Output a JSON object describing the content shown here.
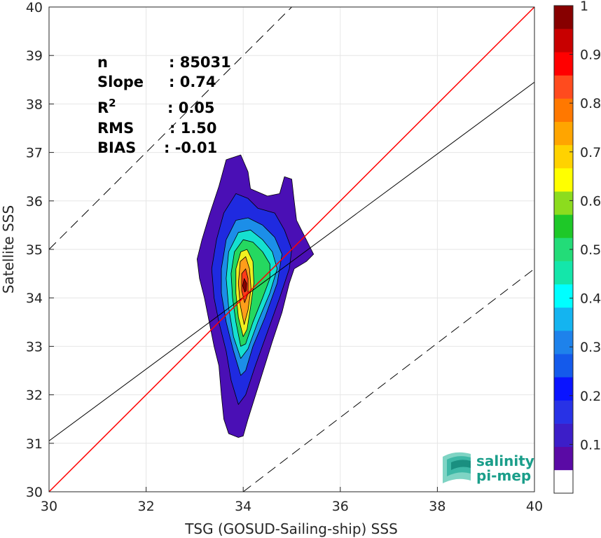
{
  "chart_data": {
    "type": "heatmap",
    "title": "",
    "xlabel": "TSG (GOSUD-Sailing-ship) SSS",
    "ylabel": "Satellite SSS",
    "xlim": [
      30,
      40
    ],
    "ylim": [
      30,
      40
    ],
    "xticks": [
      "30",
      "32",
      "34",
      "36",
      "38",
      "40"
    ],
    "yticks": [
      "30",
      "31",
      "32",
      "33",
      "34",
      "35",
      "36",
      "37",
      "38",
      "39",
      "40"
    ],
    "grid": true,
    "stats": [
      {
        "label": "n",
        "value": ": 85031"
      },
      {
        "label": "Slope",
        "value": ": 0.74"
      },
      {
        "label": "R",
        "sup": "2",
        "value": ": 0.05"
      },
      {
        "label": "RMS",
        "value": ": 1.50"
      },
      {
        "label": "BIAS",
        "value": ": -0.01"
      }
    ],
    "lines": {
      "identity": {
        "color": "#ff0000",
        "x": [
          30,
          40
        ],
        "y": [
          30,
          40
        ]
      },
      "regression": {
        "color": "#000000",
        "x": [
          30,
          40
        ],
        "y": [
          31.05,
          38.45
        ]
      },
      "upper_bound": {
        "color": "#000000",
        "style": "dashed",
        "x": [
          30,
          37
        ],
        "y": [
          35,
          42
        ]
      },
      "lower_bound": {
        "color": "#000000",
        "style": "dashed",
        "x": [
          34,
          40
        ],
        "y": [
          30,
          34.6
        ]
      }
    },
    "density_peak": {
      "x": 34.0,
      "y": 34.25
    },
    "contour_levels": [
      {
        "level": 0.05,
        "color": "#4a0fb5",
        "poly": [
          [
            33.9,
            31.12
          ],
          [
            33.7,
            31.2
          ],
          [
            33.6,
            31.5
          ],
          [
            33.55,
            32.0
          ],
          [
            33.5,
            32.6
          ],
          [
            33.4,
            33.0
          ],
          [
            33.3,
            33.5
          ],
          [
            33.2,
            34.0
          ],
          [
            33.1,
            34.4
          ],
          [
            33.05,
            34.8
          ],
          [
            33.15,
            35.2
          ],
          [
            33.3,
            35.7
          ],
          [
            33.5,
            36.3
          ],
          [
            33.65,
            36.85
          ],
          [
            33.95,
            36.95
          ],
          [
            34.1,
            36.6
          ],
          [
            34.15,
            36.25
          ],
          [
            34.5,
            36.1
          ],
          [
            34.75,
            36.15
          ],
          [
            34.85,
            36.5
          ],
          [
            35.0,
            36.45
          ],
          [
            35.05,
            36.0
          ],
          [
            35.1,
            35.6
          ],
          [
            35.25,
            35.3
          ],
          [
            35.4,
            35.0
          ],
          [
            35.45,
            34.9
          ],
          [
            35.3,
            34.75
          ],
          [
            35.05,
            34.6
          ],
          [
            34.95,
            34.3
          ],
          [
            34.8,
            33.7
          ],
          [
            34.6,
            33.1
          ],
          [
            34.35,
            32.3
          ],
          [
            34.1,
            31.5
          ],
          [
            34.0,
            31.15
          ]
        ]
      },
      {
        "level": 0.15,
        "color": "#1f2ae0",
        "poly": [
          [
            33.9,
            31.8
          ],
          [
            33.75,
            32.3
          ],
          [
            33.65,
            32.9
          ],
          [
            33.5,
            33.5
          ],
          [
            33.4,
            34.0
          ],
          [
            33.35,
            34.6
          ],
          [
            33.45,
            35.2
          ],
          [
            33.6,
            35.75
          ],
          [
            33.85,
            36.15
          ],
          [
            34.1,
            36.05
          ],
          [
            34.3,
            35.85
          ],
          [
            34.65,
            35.75
          ],
          [
            34.85,
            35.4
          ],
          [
            35.0,
            35.0
          ],
          [
            34.95,
            34.6
          ],
          [
            34.75,
            34.0
          ],
          [
            34.5,
            33.3
          ],
          [
            34.25,
            32.6
          ],
          [
            34.05,
            32.0
          ]
        ]
      },
      {
        "level": 0.25,
        "color": "#1c8ee8",
        "poly": [
          [
            33.95,
            32.4
          ],
          [
            33.8,
            32.9
          ],
          [
            33.65,
            33.5
          ],
          [
            33.55,
            34.1
          ],
          [
            33.55,
            34.6
          ],
          [
            33.65,
            35.2
          ],
          [
            33.85,
            35.6
          ],
          [
            34.1,
            35.65
          ],
          [
            34.4,
            35.5
          ],
          [
            34.65,
            35.25
          ],
          [
            34.8,
            34.9
          ],
          [
            34.7,
            34.3
          ],
          [
            34.45,
            33.6
          ],
          [
            34.2,
            33.0
          ],
          [
            34.05,
            32.5
          ]
        ]
      },
      {
        "level": 0.35,
        "color": "#15e0d0",
        "poly": [
          [
            33.95,
            32.75
          ],
          [
            33.8,
            33.2
          ],
          [
            33.7,
            33.8
          ],
          [
            33.65,
            34.4
          ],
          [
            33.7,
            34.95
          ],
          [
            33.9,
            35.35
          ],
          [
            34.15,
            35.4
          ],
          [
            34.4,
            35.2
          ],
          [
            34.6,
            34.95
          ],
          [
            34.7,
            34.6
          ],
          [
            34.55,
            34.1
          ],
          [
            34.3,
            33.5
          ],
          [
            34.1,
            32.95
          ]
        ]
      },
      {
        "level": 0.45,
        "color": "#25d860",
        "poly": [
          [
            33.95,
            33.0
          ],
          [
            33.85,
            33.5
          ],
          [
            33.78,
            34.0
          ],
          [
            33.75,
            34.5
          ],
          [
            33.82,
            34.95
          ],
          [
            34.0,
            35.2
          ],
          [
            34.2,
            35.15
          ],
          [
            34.4,
            34.95
          ],
          [
            34.55,
            34.7
          ],
          [
            34.55,
            34.4
          ],
          [
            34.4,
            34.0
          ],
          [
            34.2,
            33.5
          ],
          [
            34.05,
            33.05
          ]
        ]
      },
      {
        "level": 0.6,
        "color": "#f0f020",
        "poly": [
          [
            34.0,
            33.2
          ],
          [
            33.9,
            33.6
          ],
          [
            33.85,
            34.1
          ],
          [
            33.85,
            34.6
          ],
          [
            33.95,
            34.95
          ],
          [
            34.08,
            35.0
          ],
          [
            34.2,
            34.75
          ],
          [
            34.22,
            34.3
          ],
          [
            34.15,
            33.8
          ],
          [
            34.08,
            33.35
          ]
        ]
      },
      {
        "level": 0.75,
        "color": "#ff9d1a",
        "poly": [
          [
            34.02,
            33.45
          ],
          [
            33.94,
            33.85
          ],
          [
            33.9,
            34.3
          ],
          [
            33.94,
            34.75
          ],
          [
            34.05,
            34.85
          ],
          [
            34.13,
            34.6
          ],
          [
            34.16,
            34.2
          ],
          [
            34.1,
            33.75
          ]
        ]
      },
      {
        "level": 0.85,
        "color": "#ff3a1a",
        "poly": [
          [
            34.03,
            33.9
          ],
          [
            33.97,
            34.15
          ],
          [
            33.97,
            34.5
          ],
          [
            34.05,
            34.6
          ],
          [
            34.1,
            34.4
          ],
          [
            34.1,
            34.1
          ]
        ]
      },
      {
        "level": 0.95,
        "color": "#8b0000",
        "poly": [
          [
            34.03,
            34.12
          ],
          [
            33.99,
            34.25
          ],
          [
            34.02,
            34.4
          ],
          [
            34.07,
            34.3
          ],
          [
            34.06,
            34.15
          ]
        ]
      }
    ],
    "colorbar": {
      "range": [
        0,
        1
      ],
      "ticks": [
        "0.1",
        "0.2",
        "0.3",
        "0.4",
        "0.5",
        "0.6",
        "0.7",
        "0.8",
        "0.9",
        "1"
      ],
      "colors": [
        "#ffffff",
        "#5a0aa5",
        "#3c1ec8",
        "#2832e6",
        "#0a14ff",
        "#145aeb",
        "#1e82eb",
        "#14b4f0",
        "#00ffff",
        "#14e6aa",
        "#23dc78",
        "#1ec828",
        "#8cdc1e",
        "#ffff00",
        "#ffd200",
        "#ffa500",
        "#ff7800",
        "#ff4b1e",
        "#ff0000",
        "#c80000",
        "#870000"
      ]
    }
  },
  "logo": {
    "line1": "salinity",
    "line2": "pi-mep"
  }
}
